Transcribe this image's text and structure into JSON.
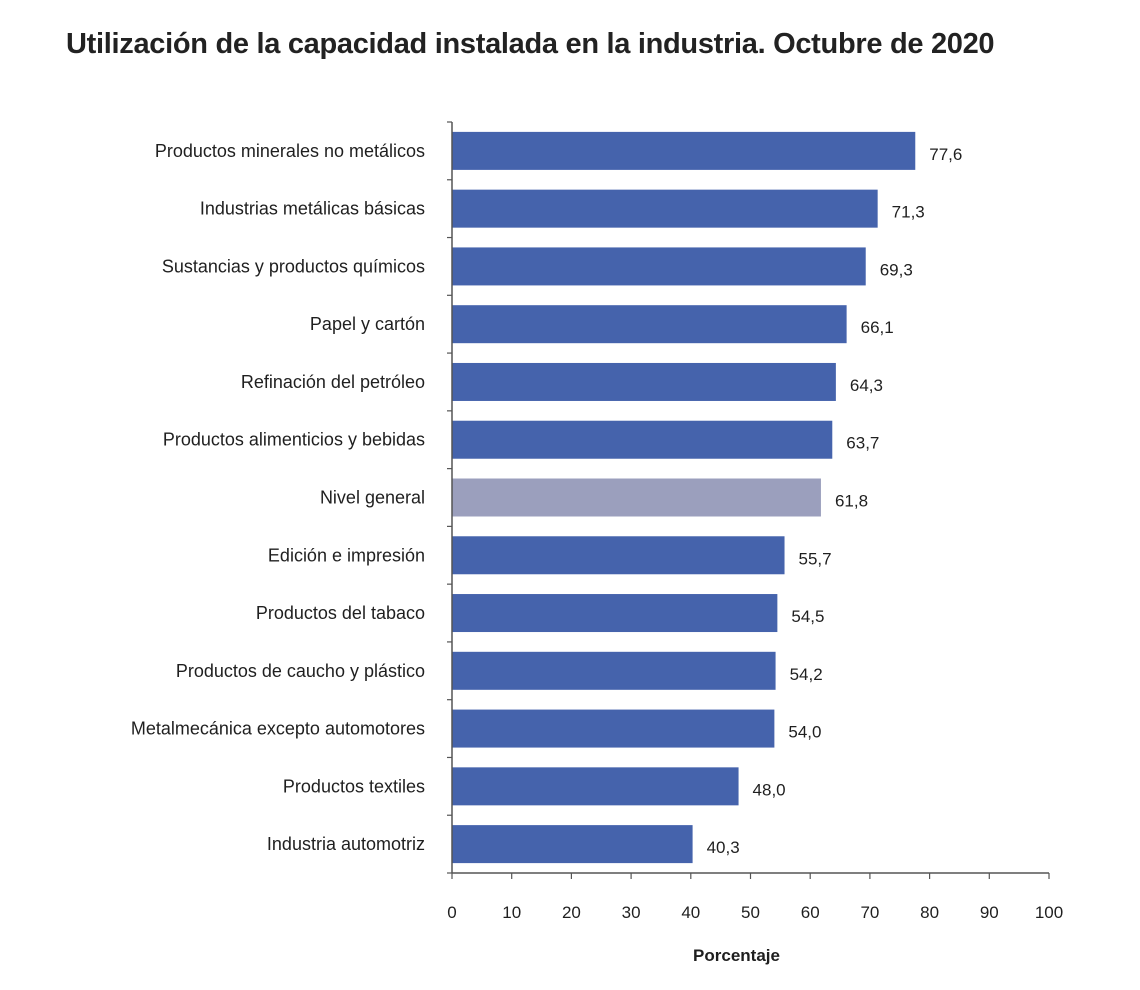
{
  "chart_data": {
    "type": "bar",
    "orientation": "horizontal",
    "title": "Utilización de la capacidad instalada en la industria. Octubre de 2020",
    "xlabel": "Porcentaje",
    "ylabel": "",
    "xlim": [
      0,
      100
    ],
    "xticks": [
      0,
      10,
      20,
      30,
      40,
      50,
      60,
      70,
      80,
      90,
      100
    ],
    "grid": false,
    "legend": "none",
    "categories": [
      "Productos minerales no metálicos",
      "Industrias metálicas básicas",
      "Sustancias y productos químicos",
      "Papel y cartón",
      "Refinación del petróleo",
      "Productos alimenticios y bebidas",
      "Nivel general",
      "Edición e impresión",
      "Productos del tabaco",
      "Productos de caucho y plástico",
      "Metalmecánica excepto automotores",
      "Productos textiles",
      "Industria automotriz"
    ],
    "values": [
      77.6,
      71.3,
      69.3,
      66.1,
      64.3,
      63.7,
      61.8,
      55.7,
      54.5,
      54.2,
      54.0,
      48.0,
      40.3
    ],
    "value_labels": [
      "77,6",
      "71,3",
      "69,3",
      "66,1",
      "64,3",
      "63,7",
      "61,8",
      "55,7",
      "54,5",
      "54,2",
      "54,0",
      "48,0",
      "40,3"
    ],
    "colors": {
      "bar": "#4563ac",
      "highlight_bar": "#9b9fbd",
      "highlight_category": "Nivel general"
    }
  }
}
